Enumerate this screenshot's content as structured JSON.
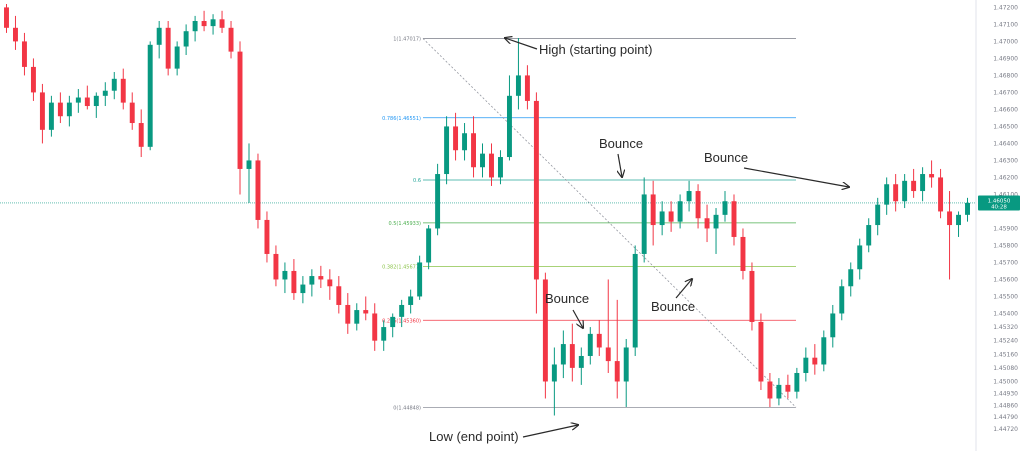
{
  "chart_data": {
    "type": "candlestick",
    "title": "",
    "xlabel": "",
    "ylabel": "",
    "ylim": [
      1.4465,
      1.4722
    ],
    "grid": false,
    "y_ticks": [
      "1.47200",
      "1.47100",
      "1.47000",
      "1.46900",
      "1.46800",
      "1.46700",
      "1.46600",
      "1.46500",
      "1.46400",
      "1.46300",
      "1.46200",
      "1.46100",
      "1.45900",
      "1.45800",
      "1.45700",
      "1.45600",
      "1.45500",
      "1.45400",
      "1.45320",
      "1.45240",
      "1.45160",
      "1.45080",
      "1.45000",
      "1.44930",
      "1.44860",
      "1.44790",
      "1.44720"
    ],
    "y_tick_values": [
      1.472,
      1.471,
      1.47,
      1.469,
      1.468,
      1.467,
      1.466,
      1.465,
      1.464,
      1.463,
      1.462,
      1.461,
      1.459,
      1.458,
      1.457,
      1.456,
      1.455,
      1.454,
      1.4532,
      1.4524,
      1.4516,
      1.4508,
      1.45,
      1.4493,
      1.4486,
      1.4479,
      1.4472
    ],
    "current_price": {
      "value": 1.4605,
      "label": "1.46050",
      "sub": "40:28",
      "color": "#089981"
    },
    "up_color": "#089981",
    "down_color": "#f23645",
    "fib_levels": [
      {
        "ratio": 1,
        "value": 1.47017,
        "label": "1(1.47017)",
        "color": "#787b86"
      },
      {
        "ratio": 0.786,
        "value": 1.46551,
        "label": "0.786(1.46551)",
        "color": "#2196f3"
      },
      {
        "ratio": 0.618,
        "value": 1.46185,
        "label": "0.6",
        "color": "#26a69a"
      },
      {
        "ratio": 0.5,
        "value": 1.45933,
        "label": "0.5(1.45933)",
        "color": "#4caf50"
      },
      {
        "ratio": 0.382,
        "value": 1.45677,
        "label": "0.382(1.45677)",
        "color": "#8bc34a"
      },
      {
        "ratio": 0.236,
        "value": 1.4536,
        "label": "0.236(1.45360)",
        "color": "#f23645"
      },
      {
        "ratio": 0,
        "value": 1.44848,
        "label": "0(1.44848)",
        "color": "#787b86"
      }
    ],
    "annotations": {
      "high": "High (starting point)",
      "low": "Low (end point)",
      "bounce1": "Bounce",
      "bounce2": "Bounce",
      "bounce3": "Bounce",
      "bounce4": "Bounce"
    },
    "candles": [
      [
        1.472,
        1.4722,
        1.4705,
        1.4708
      ],
      [
        1.4708,
        1.4715,
        1.4695,
        1.47
      ],
      [
        1.47,
        1.4705,
        1.468,
        1.4685
      ],
      [
        1.4685,
        1.469,
        1.4665,
        1.467
      ],
      [
        1.467,
        1.4675,
        1.464,
        1.4648
      ],
      [
        1.4648,
        1.4668,
        1.4644,
        1.4664
      ],
      [
        1.4664,
        1.467,
        1.4652,
        1.4656
      ],
      [
        1.4656,
        1.4668,
        1.465,
        1.4664
      ],
      [
        1.4664,
        1.4672,
        1.4658,
        1.4667
      ],
      [
        1.4667,
        1.4674,
        1.466,
        1.4662
      ],
      [
        1.4662,
        1.467,
        1.4655,
        1.4668
      ],
      [
        1.4668,
        1.4676,
        1.4662,
        1.4671
      ],
      [
        1.4671,
        1.4682,
        1.4666,
        1.4678
      ],
      [
        1.4678,
        1.4684,
        1.466,
        1.4664
      ],
      [
        1.4664,
        1.467,
        1.4648,
        1.4652
      ],
      [
        1.4652,
        1.466,
        1.4632,
        1.4638
      ],
      [
        1.4638,
        1.47,
        1.4636,
        1.4698
      ],
      [
        1.4698,
        1.4712,
        1.469,
        1.4708
      ],
      [
        1.4708,
        1.4712,
        1.468,
        1.4684
      ],
      [
        1.4684,
        1.47,
        1.468,
        1.4697
      ],
      [
        1.4697,
        1.471,
        1.4692,
        1.4706
      ],
      [
        1.4706,
        1.4715,
        1.47,
        1.4712
      ],
      [
        1.4712,
        1.4718,
        1.4706,
        1.4709
      ],
      [
        1.4709,
        1.4716,
        1.4704,
        1.4713
      ],
      [
        1.4713,
        1.4718,
        1.4705,
        1.4708
      ],
      [
        1.4708,
        1.4712,
        1.469,
        1.4694
      ],
      [
        1.4694,
        1.47,
        1.461,
        1.4625
      ],
      [
        1.4625,
        1.464,
        1.4605,
        1.463
      ],
      [
        1.463,
        1.4634,
        1.459,
        1.4595
      ],
      [
        1.4595,
        1.46,
        1.457,
        1.4575
      ],
      [
        1.4575,
        1.458,
        1.4556,
        1.456
      ],
      [
        1.456,
        1.457,
        1.4552,
        1.4565
      ],
      [
        1.4565,
        1.4572,
        1.4548,
        1.4552
      ],
      [
        1.4552,
        1.4562,
        1.4546,
        1.4557
      ],
      [
        1.4557,
        1.4566,
        1.455,
        1.4562
      ],
      [
        1.4562,
        1.4568,
        1.4555,
        1.456
      ],
      [
        1.456,
        1.4566,
        1.4548,
        1.4556
      ],
      [
        1.4556,
        1.4562,
        1.454,
        1.4545
      ],
      [
        1.4545,
        1.4552,
        1.4528,
        1.4534
      ],
      [
        1.4534,
        1.4546,
        1.453,
        1.4542
      ],
      [
        1.4542,
        1.455,
        1.4536,
        1.454
      ],
      [
        1.454,
        1.4546,
        1.4518,
        1.4524
      ],
      [
        1.4524,
        1.4536,
        1.4518,
        1.4532
      ],
      [
        1.4532,
        1.454,
        1.4526,
        1.4538
      ],
      [
        1.4538,
        1.4548,
        1.4532,
        1.4545
      ],
      [
        1.4545,
        1.4554,
        1.454,
        1.455
      ],
      [
        1.455,
        1.4574,
        1.4548,
        1.457
      ],
      [
        1.457,
        1.4592,
        1.4566,
        1.459
      ],
      [
        1.459,
        1.4628,
        1.4586,
        1.4622
      ],
      [
        1.4622,
        1.4656,
        1.4616,
        1.465
      ],
      [
        1.465,
        1.4658,
        1.463,
        1.4636
      ],
      [
        1.4636,
        1.4652,
        1.463,
        1.4646
      ],
      [
        1.4646,
        1.4656,
        1.462,
        1.4626
      ],
      [
        1.4626,
        1.464,
        1.462,
        1.4634
      ],
      [
        1.4634,
        1.464,
        1.4615,
        1.462
      ],
      [
        1.462,
        1.4636,
        1.4616,
        1.4632
      ],
      [
        1.4632,
        1.468,
        1.463,
        1.4668
      ],
      [
        1.4668,
        1.4702,
        1.466,
        1.468
      ],
      [
        1.468,
        1.4686,
        1.466,
        1.4665
      ],
      [
        1.4665,
        1.467,
        1.454,
        1.456
      ],
      [
        1.456,
        1.4564,
        1.449,
        1.45
      ],
      [
        1.45,
        1.452,
        1.448,
        1.451
      ],
      [
        1.451,
        1.453,
        1.4502,
        1.4522
      ],
      [
        1.4522,
        1.4534,
        1.45,
        1.4508
      ],
      [
        1.4508,
        1.452,
        1.4498,
        1.4515
      ],
      [
        1.4515,
        1.4532,
        1.451,
        1.4528
      ],
      [
        1.4528,
        1.4536,
        1.4515,
        1.452
      ],
      [
        1.452,
        1.456,
        1.4505,
        1.4512
      ],
      [
        1.4512,
        1.4548,
        1.449,
        1.45
      ],
      [
        1.45,
        1.4525,
        1.4485,
        1.452
      ],
      [
        1.452,
        1.458,
        1.4515,
        1.4575
      ],
      [
        1.4575,
        1.462,
        1.457,
        1.461
      ],
      [
        1.461,
        1.4618,
        1.458,
        1.4592
      ],
      [
        1.4592,
        1.4606,
        1.4586,
        1.46
      ],
      [
        1.46,
        1.4606,
        1.4588,
        1.4594
      ],
      [
        1.4594,
        1.461,
        1.459,
        1.4606
      ],
      [
        1.4606,
        1.4618,
        1.46,
        1.4612
      ],
      [
        1.4612,
        1.4616,
        1.459,
        1.4596
      ],
      [
        1.4596,
        1.4604,
        1.4582,
        1.459
      ],
      [
        1.459,
        1.4602,
        1.4575,
        1.4598
      ],
      [
        1.4598,
        1.4612,
        1.4594,
        1.4606
      ],
      [
        1.4606,
        1.461,
        1.458,
        1.4585
      ],
      [
        1.4585,
        1.459,
        1.456,
        1.4565
      ],
      [
        1.4565,
        1.457,
        1.453,
        1.4535
      ],
      [
        1.4535,
        1.454,
        1.4495,
        1.45
      ],
      [
        1.45,
        1.4505,
        1.4485,
        1.449
      ],
      [
        1.449,
        1.4502,
        1.4486,
        1.4498
      ],
      [
        1.4498,
        1.4504,
        1.449,
        1.4494
      ],
      [
        1.4494,
        1.4508,
        1.449,
        1.4505
      ],
      [
        1.4505,
        1.452,
        1.45,
        1.4514
      ],
      [
        1.4514,
        1.4522,
        1.4504,
        1.451
      ],
      [
        1.451,
        1.453,
        1.4506,
        1.4526
      ],
      [
        1.4526,
        1.4545,
        1.452,
        1.454
      ],
      [
        1.454,
        1.456,
        1.4536,
        1.4556
      ],
      [
        1.4556,
        1.457,
        1.455,
        1.4566
      ],
      [
        1.4566,
        1.4584,
        1.456,
        1.458
      ],
      [
        1.458,
        1.4596,
        1.4576,
        1.4592
      ],
      [
        1.4592,
        1.4608,
        1.4586,
        1.4604
      ],
      [
        1.4604,
        1.462,
        1.4598,
        1.4616
      ],
      [
        1.4616,
        1.4622,
        1.46,
        1.4606
      ],
      [
        1.4606,
        1.4622,
        1.4602,
        1.4618
      ],
      [
        1.4618,
        1.4625,
        1.4608,
        1.4612
      ],
      [
        1.4612,
        1.4626,
        1.4606,
        1.4622
      ],
      [
        1.4622,
        1.463,
        1.4614,
        1.462
      ],
      [
        1.462,
        1.4625,
        1.4596,
        1.46
      ],
      [
        1.46,
        1.4612,
        1.456,
        1.4592
      ],
      [
        1.4592,
        1.46,
        1.4585,
        1.4598
      ],
      [
        1.4598,
        1.4608,
        1.4594,
        1.4605
      ]
    ]
  }
}
